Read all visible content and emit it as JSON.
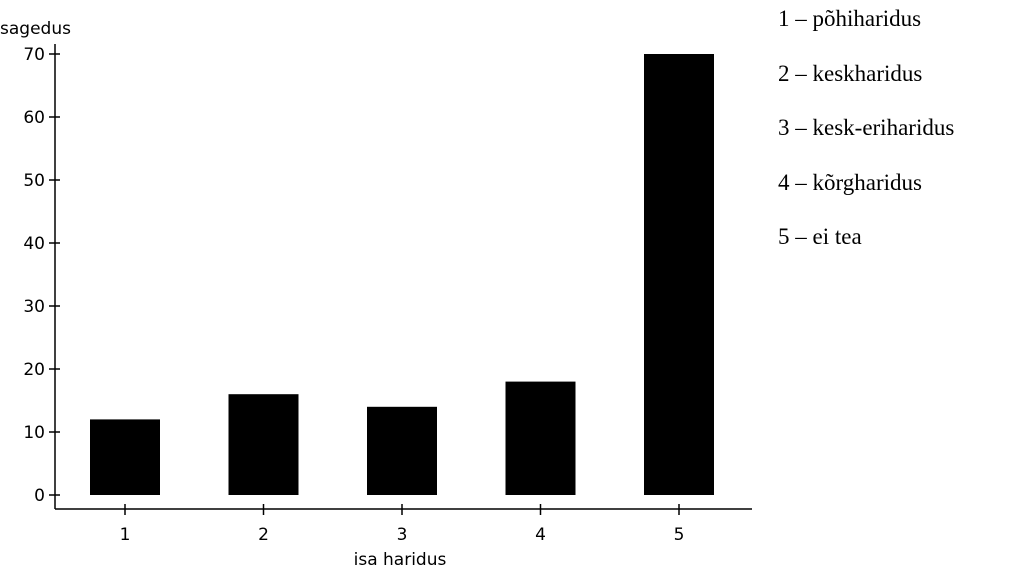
{
  "chart_data": {
    "type": "bar",
    "categories": [
      "1",
      "2",
      "3",
      "4",
      "5"
    ],
    "values": [
      12,
      16,
      14,
      18,
      70
    ],
    "xlabel": "isa haridus",
    "ylabel": "sagedus",
    "ylim": [
      0,
      70
    ],
    "yticks": [
      0,
      10,
      20,
      30,
      40,
      50,
      60,
      70
    ],
    "grid": false,
    "bar_color": "#000000"
  },
  "legend": {
    "items": [
      "1 – põhiharidus",
      "2 – keskharidus",
      "3 – kesk-eriharidus",
      "4 – kõrgharidus",
      "5 – ei tea"
    ]
  }
}
